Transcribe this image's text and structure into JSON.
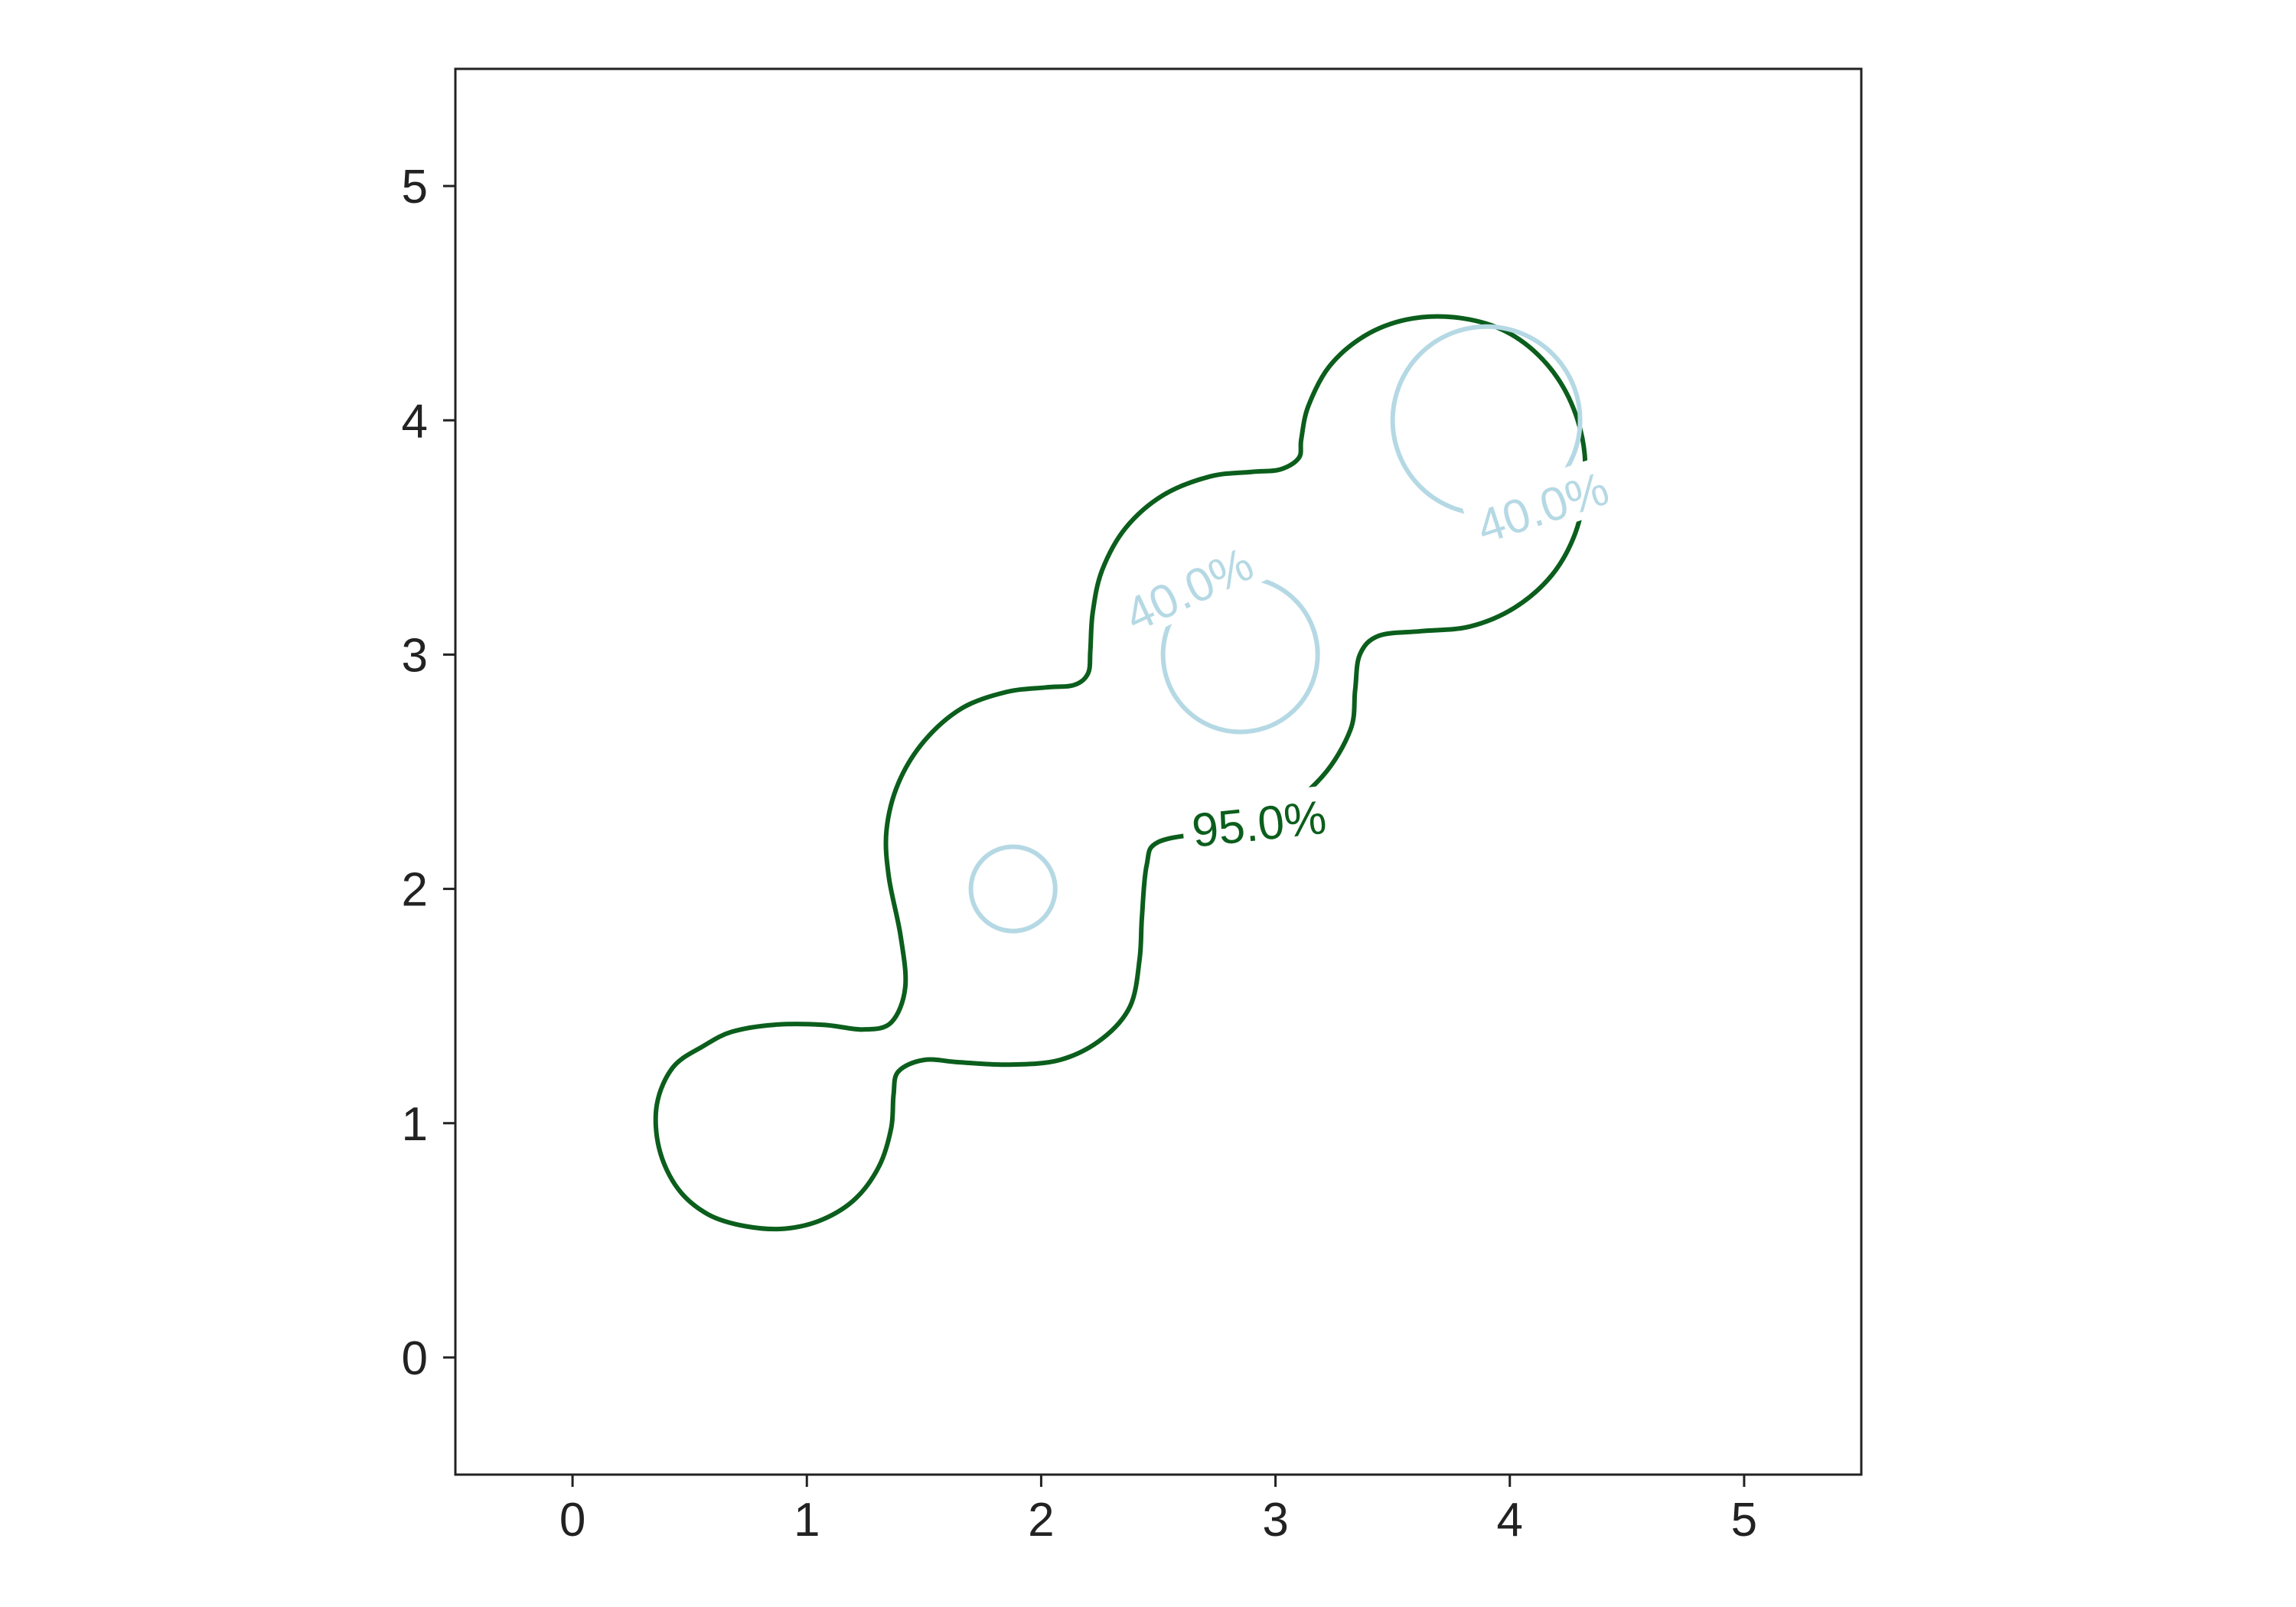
{
  "chart_data": {
    "type": "contour",
    "title": "",
    "xlabel": "",
    "ylabel": "",
    "xlim": [
      -0.5,
      5.5
    ],
    "ylim": [
      -0.5,
      5.5
    ],
    "xticks": [
      0,
      1,
      2,
      3,
      4,
      5
    ],
    "yticks": [
      0,
      1,
      2,
      3,
      4,
      5
    ],
    "aspect": "equal",
    "grid": false,
    "legend": "none",
    "density_centers": [
      {
        "x": 1,
        "y": 1
      },
      {
        "x": 2,
        "y": 2
      },
      {
        "x": 3,
        "y": 3
      },
      {
        "x": 4,
        "y": 4
      }
    ],
    "levels": [
      {
        "label": "95.0%",
        "color": "#0b5e1c",
        "regions": [
          {
            "points": [
              [
                0.56,
                1.33
              ],
              [
                0.43,
                1.24
              ],
              [
                0.36,
                1.08
              ],
              [
                0.37,
                0.89
              ],
              [
                0.45,
                0.72
              ],
              [
                0.58,
                0.61
              ],
              [
                0.74,
                0.56
              ],
              [
                0.91,
                0.55
              ],
              [
                1.07,
                0.59
              ],
              [
                1.21,
                0.68
              ],
              [
                1.31,
                0.82
              ],
              [
                1.36,
                0.98
              ],
              [
                1.37,
                1.12
              ],
              [
                1.39,
                1.22
              ],
              [
                1.5,
                1.27
              ],
              [
                1.65,
                1.26
              ],
              [
                1.86,
                1.25
              ],
              [
                2.08,
                1.27
              ],
              [
                2.26,
                1.36
              ],
              [
                2.38,
                1.5
              ],
              [
                2.42,
                1.7
              ],
              [
                2.43,
                1.88
              ],
              [
                2.45,
                2.1
              ],
              [
                2.5,
                2.2
              ],
              [
                2.75,
                2.25
              ],
              [
                3.0,
                2.32
              ],
              [
                3.2,
                2.48
              ],
              [
                3.32,
                2.68
              ],
              [
                3.34,
                2.85
              ],
              [
                3.36,
                3.0
              ],
              [
                3.44,
                3.08
              ],
              [
                3.62,
                3.1
              ],
              [
                3.83,
                3.12
              ],
              [
                4.02,
                3.2
              ],
              [
                4.18,
                3.34
              ],
              [
                4.28,
                3.52
              ],
              [
                4.32,
                3.72
              ],
              [
                4.31,
                3.92
              ],
              [
                4.24,
                4.12
              ],
              [
                4.12,
                4.28
              ],
              [
                3.96,
                4.39
              ],
              [
                3.76,
                4.44
              ],
              [
                3.56,
                4.43
              ],
              [
                3.38,
                4.36
              ],
              [
                3.23,
                4.23
              ],
              [
                3.14,
                4.06
              ],
              [
                3.11,
                3.92
              ],
              [
                3.1,
                3.84
              ],
              [
                3.02,
                3.79
              ],
              [
                2.9,
                3.78
              ],
              [
                2.72,
                3.76
              ],
              [
                2.52,
                3.68
              ],
              [
                2.36,
                3.54
              ],
              [
                2.26,
                3.36
              ],
              [
                2.22,
                3.18
              ],
              [
                2.21,
                3.02
              ],
              [
                2.2,
                2.92
              ],
              [
                2.14,
                2.87
              ],
              [
                2.02,
                2.86
              ],
              [
                1.85,
                2.84
              ],
              [
                1.66,
                2.77
              ],
              [
                1.5,
                2.63
              ],
              [
                1.39,
                2.45
              ],
              [
                1.34,
                2.25
              ],
              [
                1.35,
                2.05
              ],
              [
                1.4,
                1.8
              ],
              [
                1.42,
                1.58
              ],
              [
                1.36,
                1.43
              ],
              [
                1.24,
                1.4
              ],
              [
                1.07,
                1.42
              ],
              [
                0.86,
                1.42
              ],
              [
                0.68,
                1.39
              ]
            ]
          }
        ]
      },
      {
        "label": "40.0%",
        "color": "#b5d9e4",
        "regions": [
          {
            "center": [
              1.88,
              2.0
            ],
            "radius": 0.18
          },
          {
            "center": [
              2.85,
              3.0
            ],
            "radius": 0.33
          },
          {
            "center": [
              3.9,
              4.0
            ],
            "radius": 0.4
          }
        ]
      }
    ]
  }
}
